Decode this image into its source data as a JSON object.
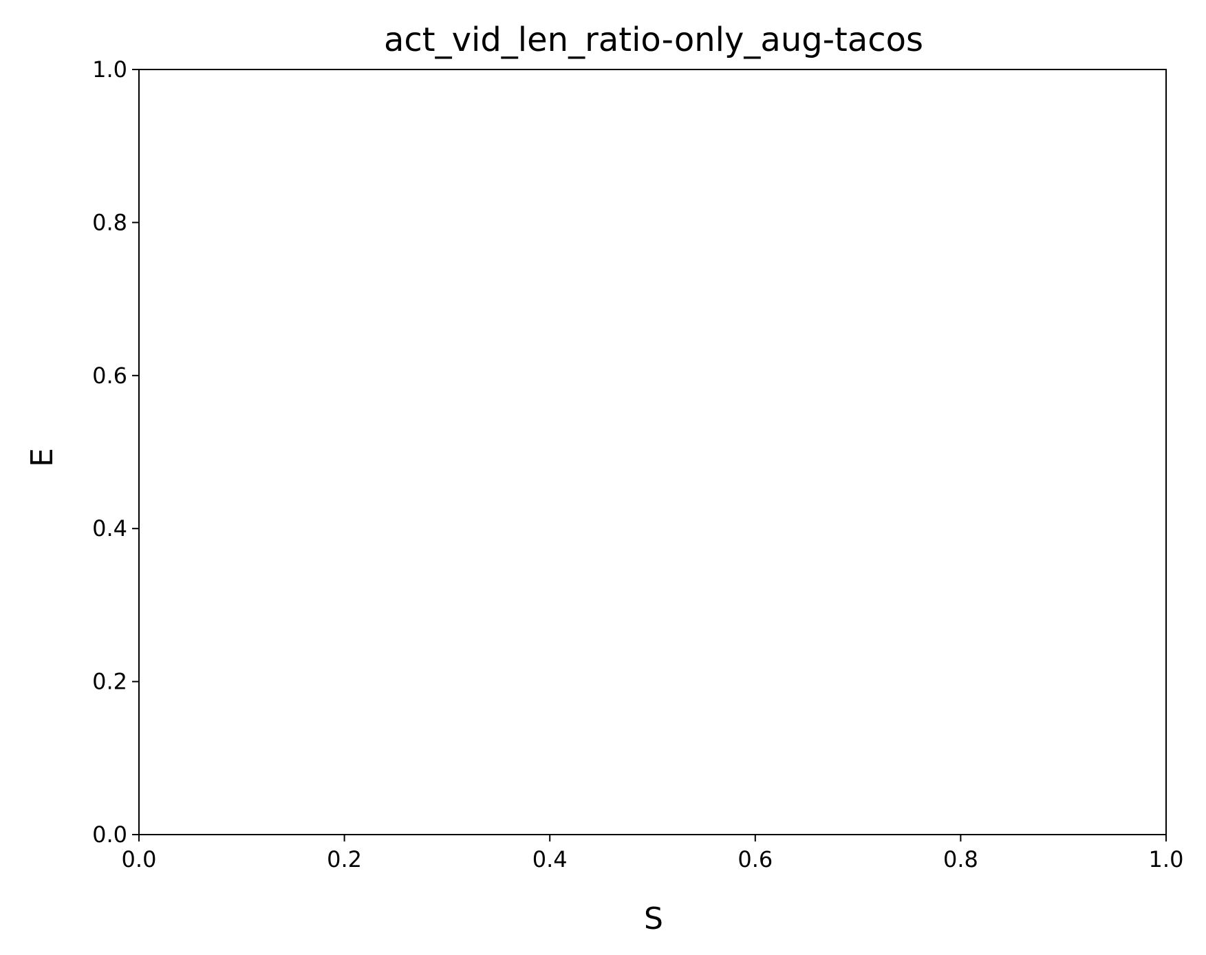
{
  "chart_data": {
    "type": "line",
    "title": "act_vid_len_ratio-only_aug-tacos",
    "xlabel": "S",
    "ylabel": "E",
    "xlim": [
      0.0,
      1.0
    ],
    "ylim": [
      0.0,
      1.0
    ],
    "xticks": [
      "0.0",
      "0.2",
      "0.4",
      "0.6",
      "0.8",
      "1.0"
    ],
    "yticks": [
      "0.0",
      "0.2",
      "0.4",
      "0.6",
      "0.8",
      "1.0"
    ],
    "series": [],
    "grid": false,
    "legend": "none"
  }
}
